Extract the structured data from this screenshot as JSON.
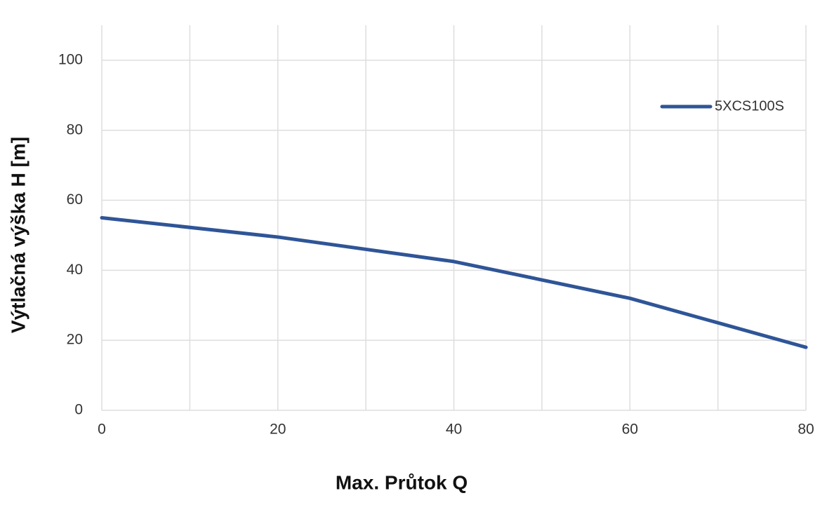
{
  "chart_data": {
    "type": "line",
    "x_label": "Max. Průtok Q",
    "y_label": "Výtlačná výška H [m]",
    "x": [
      0,
      20,
      40,
      60,
      80
    ],
    "series": [
      {
        "name": "5XCS100S",
        "color": "#2f5597",
        "values": [
          55,
          49.5,
          42.5,
          32,
          18
        ]
      }
    ],
    "xlim": [
      0,
      80
    ],
    "xticks": [
      0,
      20,
      40,
      60,
      80
    ],
    "x_grid": [
      0,
      10,
      20,
      30,
      40,
      50,
      60,
      70,
      80
    ],
    "ylim": [
      0,
      110
    ],
    "yticks": [
      0,
      20,
      40,
      60,
      80,
      100
    ],
    "grid": true,
    "legend": "upper right"
  }
}
